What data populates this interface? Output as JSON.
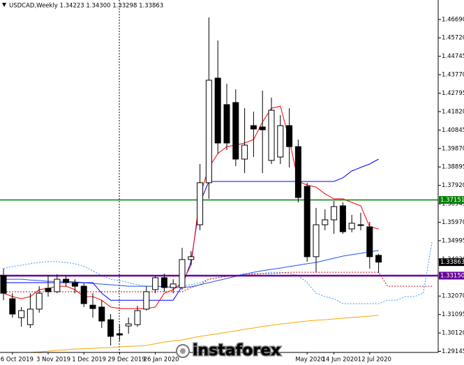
{
  "chart_data": {
    "type": "candlestick",
    "title": "USDCAD,Weekly  1.34223 1.34300 1.33298 1.33863",
    "watermark": "instaforex",
    "categories": [
      null,
      "6 Oct 2019",
      null,
      null,
      null,
      "3 Nov 2019",
      null,
      null,
      null,
      "1 Dec 2019",
      null,
      null,
      null,
      "29 Dec 2019",
      null,
      null,
      null,
      "26 Jan 2020",
      null,
      null,
      null,
      null,
      null,
      null,
      null,
      null,
      null,
      null,
      null,
      null,
      null,
      null,
      null,
      null,
      "May 2020",
      null,
      null,
      "14 Jun 2020",
      null,
      null,
      null,
      "12 Jul 2020",
      null,
      null,
      null,
      null,
      null,
      null,
      null
    ],
    "open": [
      1.3315,
      1.3193,
      1.3093,
      1.3056,
      1.3138,
      1.3248,
      1.323,
      1.3296,
      1.3278,
      1.3259,
      1.3159,
      1.3149,
      1.3082,
      1.3008,
      1.3049,
      1.3056,
      1.3138,
      1.3241,
      1.3304,
      1.3252,
      1.3252,
      1.34,
      1.3584,
      1.3806,
      1.4359,
      1.4219,
      1.423,
      1.3931,
      1.4108,
      1.4101,
      1.3924,
      1.3942,
      1.4108,
      1.3997,
      1.3787,
      1.3415,
      1.3584,
      1.361,
      1.3684,
      1.3562,
      1.3584,
      1.3573,
      1.34223,
      null,
      null,
      null,
      null,
      null,
      null
    ],
    "high": [
      1.3352,
      1.3222,
      1.3149,
      1.3222,
      1.3259,
      1.3315,
      1.3322,
      1.3315,
      1.3296,
      1.3278,
      1.3222,
      1.3185,
      1.3112,
      1.3056,
      1.3093,
      1.3156,
      1.3259,
      1.3315,
      1.3326,
      1.3296,
      1.3462,
      1.3444,
      1.3905,
      1.468,
      1.4558,
      1.4329,
      1.43,
      1.42,
      1.4182,
      1.4293,
      1.4256,
      1.4163,
      1.42,
      1.4034,
      1.3806,
      1.3673,
      1.3665,
      1.371,
      1.3702,
      1.3636,
      1.3647,
      1.3599,
      1.343,
      null,
      null,
      null,
      null,
      null,
      null
    ],
    "low": [
      1.3185,
      1.3093,
      1.3045,
      1.3038,
      1.3119,
      1.3204,
      1.3222,
      1.3259,
      1.3222,
      1.3149,
      1.3093,
      1.3038,
      1.2946,
      1.2972,
      1.3008,
      1.3045,
      1.313,
      1.3222,
      1.323,
      1.3222,
      1.3241,
      1.337,
      1.3555,
      1.3721,
      1.396,
      1.3979,
      1.3894,
      1.3857,
      1.3942,
      1.3857,
      1.3905,
      1.3905,
      1.3887,
      1.3702,
      1.3389,
      1.3333,
      1.3555,
      1.3536,
      1.3536,
      1.3544,
      1.3555,
      1.3352,
      1.33298,
      null,
      null,
      null,
      null,
      null,
      null
    ],
    "close": [
      1.3222,
      1.3112,
      1.313,
      1.3138,
      1.3222,
      1.323,
      1.3296,
      1.3278,
      1.3259,
      1.3167,
      1.3141,
      1.3075,
      1.2994,
      1.3001,
      1.306,
      1.313,
      1.323,
      1.3304,
      1.3252,
      1.3271,
      1.34,
      1.3415,
      1.3806,
      1.4348,
      1.4016,
      1.4016,
      1.3931,
      1.4005,
      1.409,
      1.4086,
      1.4189,
      1.4108,
      1.3997,
      1.3728,
      1.3415,
      1.3584,
      1.361,
      1.368,
      1.3547,
      1.3592,
      1.358,
      1.3415,
      1.33863,
      null,
      null,
      null,
      null,
      null,
      null
    ],
    "series": [
      {
        "color": "#3399ff",
        "dashed": true,
        "values": [
          1.3352,
          1.3363,
          1.337,
          1.3378,
          1.3385,
          1.3389,
          1.3389,
          1.3385,
          1.3378,
          1.3363,
          1.3341,
          1.3315,
          1.3296,
          1.3289,
          1.3278,
          1.3267,
          1.3259,
          1.3259,
          1.3259,
          1.3259,
          1.3259,
          1.3267,
          1.3278,
          1.3296,
          1.3304,
          1.3315,
          1.3315,
          1.3326,
          1.3326,
          1.3326,
          1.3333,
          1.3333,
          1.3326,
          1.3315,
          1.3278,
          1.3222,
          1.3204,
          1.3193,
          1.3167,
          1.3167,
          1.3167,
          1.3167,
          1.3167,
          1.3185,
          1.3185,
          1.3204,
          1.3204,
          1.3222,
          1.3499
        ]
      },
      {
        "color": "#cc0000",
        "dashed": true,
        "values": [
          1.323,
          1.323,
          1.323,
          1.323,
          1.323,
          1.323,
          1.323,
          1.323,
          1.323,
          1.323,
          1.323,
          1.323,
          1.323,
          1.323,
          1.323,
          1.323,
          1.323,
          1.323,
          1.323,
          1.323,
          1.323,
          1.3252,
          1.3267,
          1.3296,
          1.3304,
          1.3311,
          1.3315,
          1.3318,
          1.3322,
          1.3326,
          1.3326,
          1.3329,
          1.3333,
          1.3333,
          1.3333,
          1.3333,
          1.3333,
          1.3333,
          1.3333,
          1.3333,
          1.3333,
          1.3333,
          1.3333,
          1.3259,
          1.3259,
          1.3259,
          1.3259,
          1.3259,
          1.3259
        ]
      },
      {
        "color": "#ffa500",
        "dashed": false,
        "values": [
          null,
          null,
          null,
          1.2909,
          1.2912,
          1.2916,
          1.292,
          1.2923,
          1.2927,
          1.2929,
          1.2931,
          1.2933,
          1.2935,
          1.2938,
          1.2941,
          1.2943,
          1.2946,
          1.2955,
          1.2964,
          1.297,
          1.2975,
          1.2985,
          1.2994,
          1.3001,
          1.3008,
          1.3016,
          1.3023,
          1.3031,
          1.3038,
          1.3046,
          1.3053,
          1.3059,
          1.3064,
          1.307,
          1.3075,
          1.3079,
          1.3082,
          1.3086,
          1.309,
          1.3094,
          1.3097,
          1.3101,
          1.3105,
          null,
          null,
          null,
          null,
          null,
          null
        ]
      },
      {
        "color": "#2255ee",
        "dashed": false,
        "values": [
          1.3296,
          1.3296,
          1.3296,
          1.3292,
          1.3289,
          1.3285,
          1.3285,
          1.3285,
          1.3282,
          1.3278,
          1.3274,
          1.327,
          1.3267,
          1.3263,
          1.3259,
          1.3259,
          1.3259,
          1.3259,
          1.3256,
          1.3252,
          1.3252,
          1.3256,
          1.3267,
          1.3278,
          1.3289,
          1.33,
          1.3311,
          1.3322,
          1.3333,
          1.3341,
          1.3348,
          1.3355,
          1.3363,
          1.337,
          1.3378,
          1.3385,
          1.3396,
          1.3407,
          1.3418,
          1.3426,
          1.3433,
          1.3441,
          1.3448,
          null,
          null,
          null,
          null,
          null,
          null
        ]
      },
      {
        "color": "#0000ff",
        "dashed": false,
        "values": [
          1.3278,
          1.3278,
          1.3278,
          1.3278,
          1.3278,
          1.3278,
          1.3278,
          1.3278,
          1.3278,
          1.3278,
          1.3278,
          1.3222,
          1.3185,
          1.3185,
          1.3185,
          1.3185,
          1.3185,
          1.3185,
          1.3185,
          1.3185,
          1.3259,
          1.3389,
          1.3702,
          1.3813,
          1.3813,
          1.3813,
          1.3813,
          1.3813,
          1.3813,
          1.3813,
          1.3813,
          1.3813,
          1.3813,
          1.3813,
          1.3813,
          1.3813,
          1.3813,
          1.3813,
          1.3832,
          1.3868,
          1.3887,
          1.3905,
          1.3931,
          null,
          null,
          null,
          null,
          null,
          null
        ]
      },
      {
        "color": "#ff0000",
        "dashed": false,
        "values": [
          1.3222,
          1.3204,
          1.3193,
          1.3204,
          1.3241,
          1.3248,
          1.3259,
          1.3259,
          1.3241,
          1.3204,
          1.3204,
          1.3185,
          1.3149,
          1.3141,
          1.3141,
          1.3141,
          1.3141,
          1.3149,
          1.3222,
          1.3241,
          1.3278,
          1.337,
          1.3739,
          1.3887,
          1.396,
          1.3997,
          1.4005,
          1.4016,
          1.4034,
          1.4127,
          1.42,
          1.4211,
          1.4034,
          1.3813,
          1.3794,
          1.3783,
          1.3747,
          1.3721,
          1.3721,
          1.3702,
          1.3684,
          1.3573,
          1.3562,
          null,
          null,
          null,
          null,
          null,
          null
        ]
      }
    ],
    "hlines": [
      {
        "value": 1.37151,
        "label": "1.37151",
        "color": "#008000",
        "width": 1.5
      },
      {
        "value": 1.3315,
        "label": "1.33150",
        "color": "#660099",
        "width": 2.5
      },
      {
        "value": 1.33863,
        "label": "1.33863",
        "color": "#000000",
        "width": 0
      }
    ],
    "ylim": [
      1.2909,
      1.4772
    ],
    "yticks": [
      {
        "value": 1.4669,
        "label": "1.46690"
      },
      {
        "value": 1.4572,
        "label": "1.45720"
      },
      {
        "value": 1.44745,
        "label": "1.44745"
      },
      {
        "value": 1.4377,
        "label": "1.43770"
      },
      {
        "value": 1.42795,
        "label": "1.42795"
      },
      {
        "value": 1.4182,
        "label": "1.41820"
      },
      {
        "value": 1.40845,
        "label": "1.40845"
      },
      {
        "value": 1.3987,
        "label": "1.39870"
      },
      {
        "value": 1.38895,
        "label": "1.38895"
      },
      {
        "value": 1.3792,
        "label": "1.37920"
      },
      {
        "value": 1.36945,
        "label": "1.36945"
      },
      {
        "value": 1.3597,
        "label": "1.35970"
      },
      {
        "value": 1.34995,
        "label": "1.34995"
      },
      {
        "value": 1.3402,
        "label": "1.34020"
      },
      {
        "value": 1.33045,
        "label": "1.33045"
      },
      {
        "value": 1.3207,
        "label": "1.32070"
      },
      {
        "value": 1.31095,
        "label": "1.31095"
      },
      {
        "value": 1.3012,
        "label": "1.30120"
      },
      {
        "value": 1.29145,
        "label": "1.29145"
      }
    ],
    "up_color": "#ffffff",
    "down_color": "#000000"
  }
}
